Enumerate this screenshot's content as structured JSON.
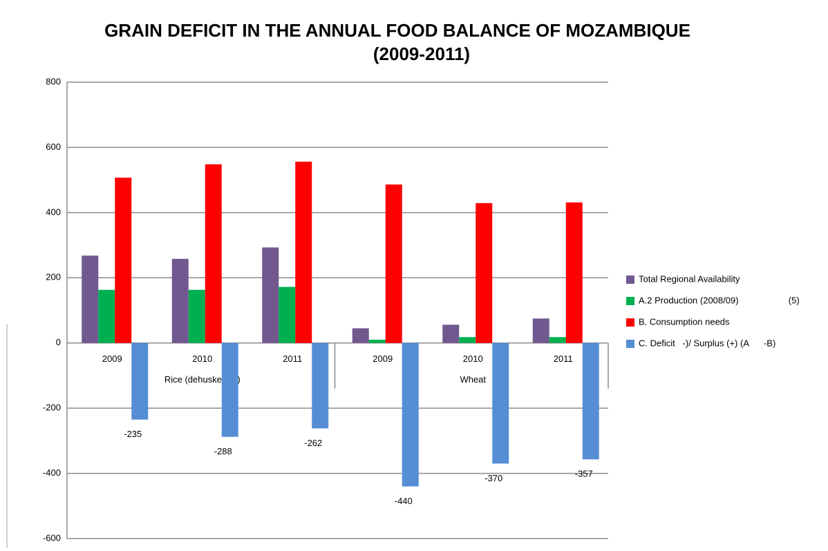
{
  "chart_data": {
    "type": "bar",
    "title": [
      "GRAIN DEFICIT IN THE ANNUAL FOOD BALANCE OF MOZAMBIQUE",
      "(2009-2011)"
    ],
    "categories": [
      "2009",
      "2010",
      "2011",
      "2009",
      "2010",
      "2011"
    ],
    "category_groups": [
      "Rice (dehusked (1)",
      "Wheat"
    ],
    "series": [
      {
        "name": "Total Regional Availability",
        "color": "#71588f",
        "values": [
          268,
          258,
          293,
          45,
          56,
          75
        ]
      },
      {
        "name": "A.2 Production (2008/09)                    (5)",
        "color": "#00b050",
        "values": [
          163,
          163,
          172,
          10,
          18,
          18
        ]
      },
      {
        "name": "B. Consumption needs",
        "color": "#ff0000",
        "values": [
          507,
          548,
          556,
          486,
          429,
          431
        ]
      },
      {
        "name": "C. Deficit   -)/ Surplus (+) (A      -B)",
        "color": "#558ed5",
        "values": [
          -235,
          -288,
          -262,
          -440,
          -370,
          -357
        ],
        "data_labels": true
      }
    ],
    "ylim": [
      -600,
      800
    ],
    "yticks": [
      -600,
      -400,
      -200,
      0,
      200,
      400,
      600,
      800
    ],
    "grid": true,
    "legend": "right"
  }
}
